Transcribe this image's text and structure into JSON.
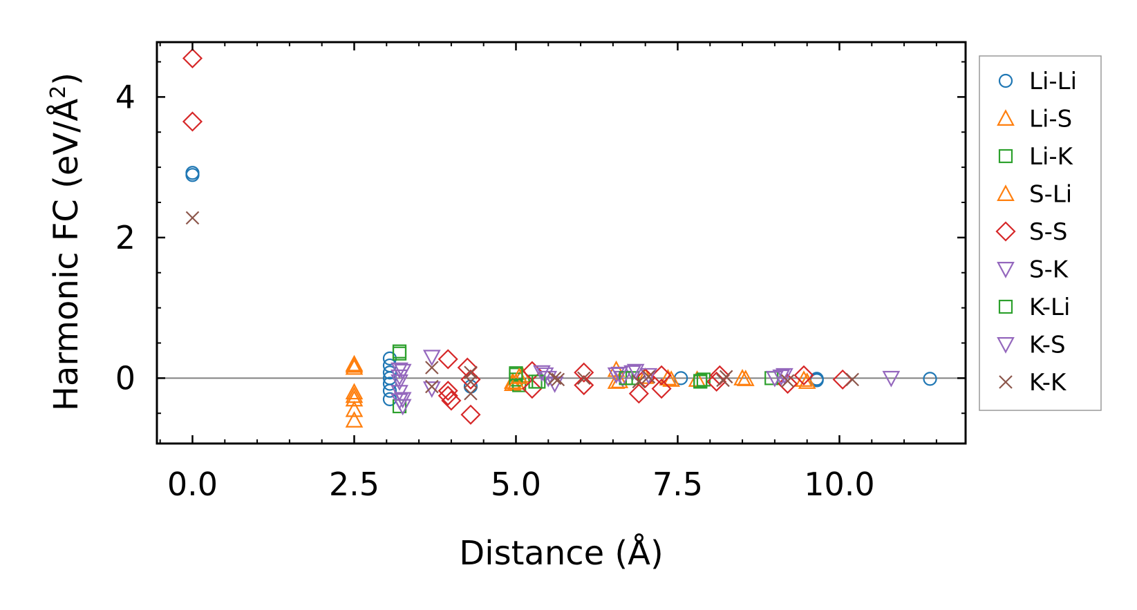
{
  "chart_data": {
    "type": "scatter",
    "title": "",
    "xlabel": "Distance (Å)",
    "ylabel_text": "Harmonic FC (eV/Å",
    "ylabel_superscript": "2",
    "ylabel_close": ")",
    "xlim": [
      -0.55,
      11.95
    ],
    "ylim": [
      -0.93,
      4.78
    ],
    "xticks": [
      0.0,
      2.5,
      5.0,
      7.5,
      10.0
    ],
    "xtick_labels": [
      "0.0",
      "2.5",
      "5.0",
      "7.5",
      "10.0"
    ],
    "yticks": [
      0,
      2,
      4
    ],
    "ytick_labels": [
      "0",
      "2",
      "4"
    ],
    "x_minor_step": 0.5,
    "y_minor_step": 0.5,
    "zero_line": 0,
    "grid": false,
    "legend_position": "outside-right",
    "series": [
      {
        "name": "Li-Li",
        "marker": "circle",
        "color": "#1f77b4",
        "x": [
          0,
          0,
          3.05,
          3.05,
          3.05,
          3.05,
          3.05,
          3.05,
          3.05,
          4.3,
          7.55,
          9.65,
          9.65,
          11.4
        ],
        "y": [
          2.92,
          2.89,
          0.28,
          0.18,
          0.08,
          0.0,
          -0.08,
          -0.18,
          -0.3,
          -0.12,
          0.0,
          -0.01,
          -0.03,
          -0.01
        ]
      },
      {
        "name": "Li-S",
        "marker": "triangle-up",
        "color": "#ff7f0e",
        "x": [
          2.5,
          2.5,
          2.5,
          2.5,
          2.5,
          2.5,
          4.95,
          4.95,
          5.1,
          6.55,
          6.55,
          7.0,
          7.35,
          7.8,
          8.5,
          9.45
        ],
        "y": [
          0.2,
          0.15,
          -0.2,
          -0.3,
          -0.45,
          -0.6,
          -0.05,
          -0.08,
          0.04,
          0.12,
          -0.05,
          0.02,
          0.0,
          -0.02,
          0.0,
          -0.02
        ]
      },
      {
        "name": "Li-K",
        "marker": "square",
        "color": "#2ca02c",
        "x": [
          3.2,
          3.2,
          5.0,
          5.0,
          5.05,
          5.3,
          6.8,
          7.85,
          7.9,
          8.95
        ],
        "y": [
          0.38,
          -0.4,
          0.05,
          -0.02,
          -0.1,
          -0.05,
          0.0,
          -0.05,
          -0.02,
          0.0
        ]
      },
      {
        "name": "S-Li",
        "marker": "triangle-up",
        "color": "#ff7f0e",
        "x": [
          2.5,
          2.5,
          5.0,
          5.05,
          6.6,
          7.4,
          8.55,
          9.5
        ],
        "y": [
          0.18,
          -0.25,
          -0.06,
          0.02,
          -0.04,
          -0.02,
          -0.01,
          -0.05
        ]
      },
      {
        "name": "S-S",
        "marker": "diamond",
        "color": "#d62728",
        "x": [
          0,
          0,
          3.95,
          3.95,
          3.95,
          4.0,
          4.25,
          4.3,
          4.3,
          5.25,
          5.25,
          6.05,
          6.05,
          6.9,
          7.0,
          7.25,
          7.25,
          8.1,
          8.15,
          9.2,
          9.45,
          10.05
        ],
        "y": [
          4.55,
          3.65,
          0.27,
          -0.18,
          -0.25,
          -0.32,
          0.15,
          -0.02,
          -0.52,
          0.1,
          -0.15,
          0.08,
          -0.1,
          -0.22,
          0.0,
          0.04,
          -0.15,
          -0.05,
          0.04,
          -0.08,
          0.04,
          -0.02
        ]
      },
      {
        "name": "S-K",
        "marker": "triangle-down",
        "color": "#9467bd",
        "x": [
          3.2,
          3.2,
          3.2,
          3.2,
          3.2,
          3.25,
          3.7,
          3.7,
          5.45,
          5.5,
          5.6,
          6.55,
          6.65,
          6.8,
          9.0,
          9.15,
          10.8
        ],
        "y": [
          0.12,
          0.02,
          -0.05,
          -0.2,
          -0.32,
          -0.4,
          0.3,
          -0.15,
          0.05,
          0.0,
          -0.08,
          0.05,
          0.0,
          0.08,
          0.0,
          0.04,
          0.0
        ]
      },
      {
        "name": "K-Li",
        "marker": "square",
        "color": "#2ca02c",
        "x": [
          3.2,
          5.0,
          5.35,
          6.7,
          7.85
        ],
        "y": [
          0.35,
          0.07,
          -0.05,
          0.0,
          -0.04
        ]
      },
      {
        "name": "K-S",
        "marker": "triangle-down",
        "color": "#9467bd",
        "x": [
          3.25,
          3.25,
          5.4,
          6.6,
          6.85,
          7.05,
          9.1
        ],
        "y": [
          0.1,
          -0.3,
          0.08,
          0.06,
          0.1,
          0.04,
          0.02
        ]
      },
      {
        "name": "K-K",
        "marker": "x",
        "color": "#8c564b",
        "x": [
          0,
          3.7,
          3.7,
          4.3,
          4.3,
          4.3,
          5.6,
          5.65,
          6.05,
          6.9,
          7.05,
          8.2,
          8.25,
          9.2,
          10.2
        ],
        "y": [
          2.28,
          0.15,
          -0.12,
          0.08,
          -0.05,
          -0.22,
          0.0,
          -0.02,
          0.0,
          -0.05,
          0.02,
          -0.03,
          0.02,
          -0.04,
          -0.02
        ]
      }
    ]
  }
}
